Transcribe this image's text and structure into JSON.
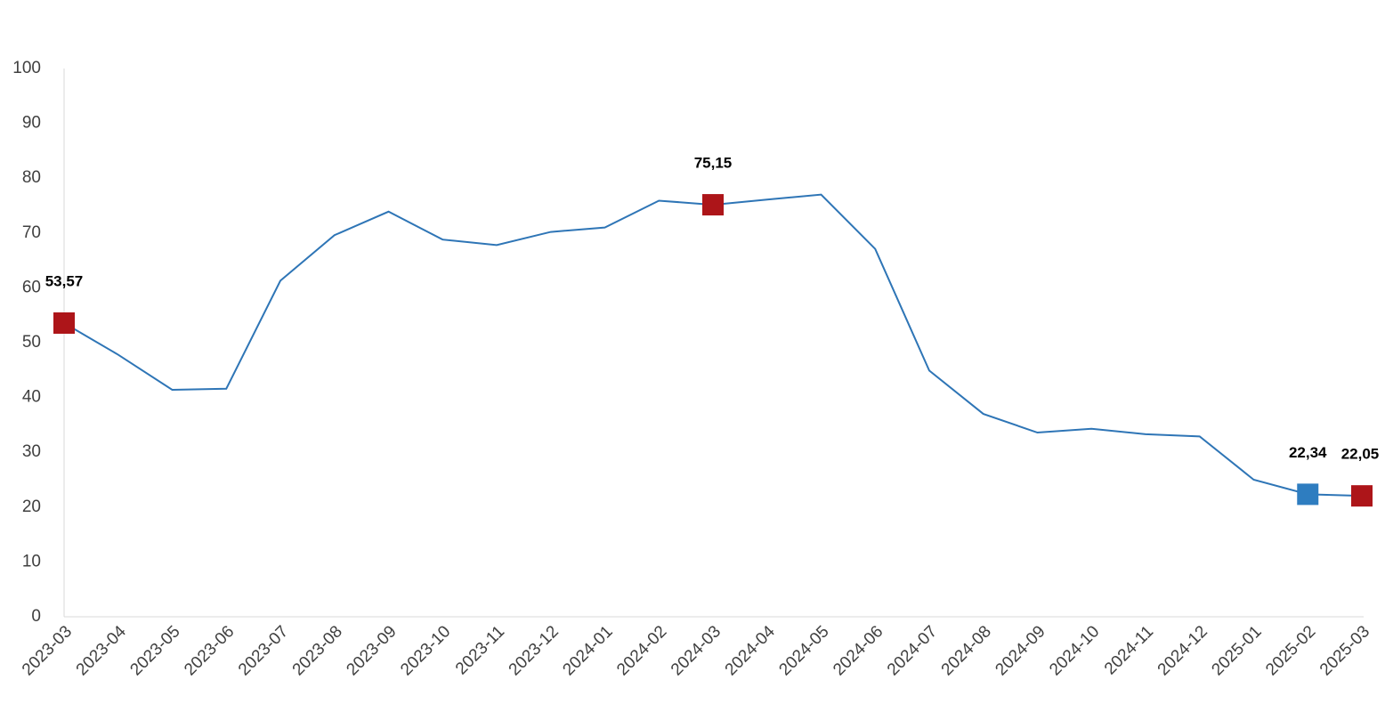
{
  "chart_data": {
    "type": "line",
    "categories": [
      "2023-03",
      "2023-04",
      "2023-05",
      "2023-06",
      "2023-07",
      "2023-08",
      "2023-09",
      "2023-10",
      "2023-11",
      "2023-12",
      "2024-01",
      "2024-02",
      "2024-03",
      "2024-04",
      "2024-05",
      "2024-06",
      "2024-07",
      "2024-08",
      "2024-09",
      "2024-10",
      "2024-11",
      "2024-12",
      "2025-01",
      "2025-02",
      "2025-03"
    ],
    "values": [
      53.57,
      47.8,
      41.4,
      41.6,
      61.3,
      69.6,
      73.9,
      68.8,
      67.8,
      70.2,
      71.0,
      75.9,
      75.15,
      76.1,
      77.0,
      67.1,
      44.9,
      37.0,
      33.6,
      34.3,
      33.3,
      32.9,
      25.0,
      22.34,
      22.05
    ],
    "value_labels": [
      "53,57",
      null,
      null,
      null,
      null,
      null,
      null,
      null,
      null,
      null,
      null,
      null,
      "75,15",
      null,
      null,
      null,
      null,
      null,
      null,
      null,
      null,
      null,
      null,
      "22,34",
      "22,05"
    ],
    "marker_colors": [
      "#ad1519",
      null,
      null,
      null,
      null,
      null,
      null,
      null,
      null,
      null,
      null,
      null,
      "#ad1519",
      null,
      null,
      null,
      null,
      null,
      null,
      null,
      null,
      null,
      null,
      "#2e7dc0",
      "#ad1519"
    ],
    "color": "#2e75b6",
    "ylim": [
      0,
      100
    ],
    "yticks": [
      0,
      10,
      20,
      30,
      40,
      50,
      60,
      70,
      80,
      90,
      100
    ],
    "grid": false
  }
}
